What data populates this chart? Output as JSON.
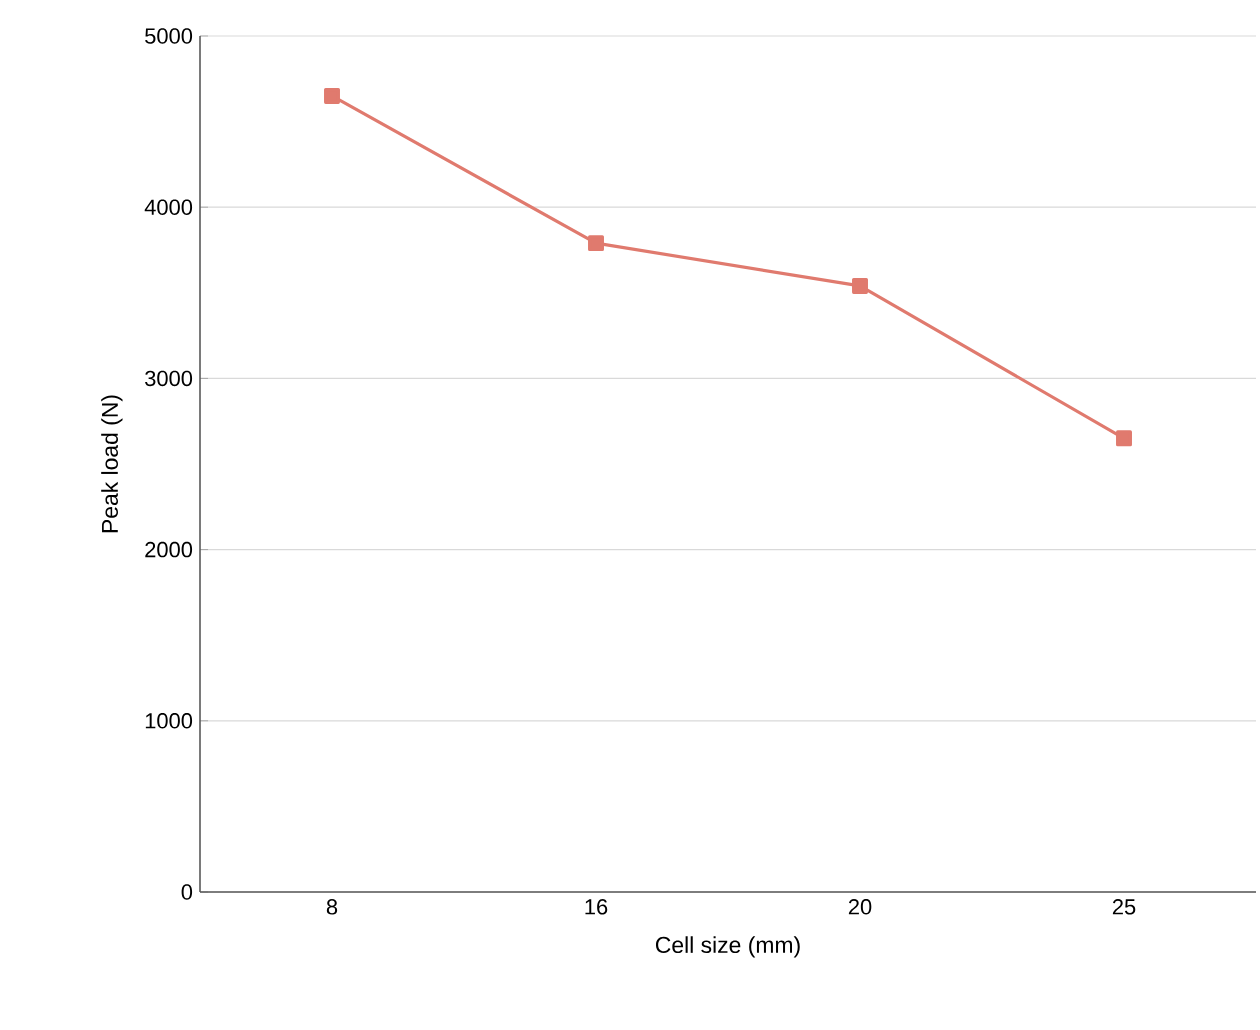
{
  "chart_data": {
    "type": "line",
    "xlabel": "Cell size (mm)",
    "ylabel": "Peak load (N)",
    "categories": [
      "8",
      "16",
      "20",
      "25"
    ],
    "series": [
      {
        "color": "#e07a6e",
        "values": [
          4650,
          3790,
          3540,
          2650
        ]
      }
    ],
    "ylim": [
      0,
      5000
    ],
    "yticks": [
      0,
      1000,
      2000,
      3000,
      4000,
      5000
    ],
    "grid": "y",
    "marker": "square",
    "line_style": "solid"
  }
}
